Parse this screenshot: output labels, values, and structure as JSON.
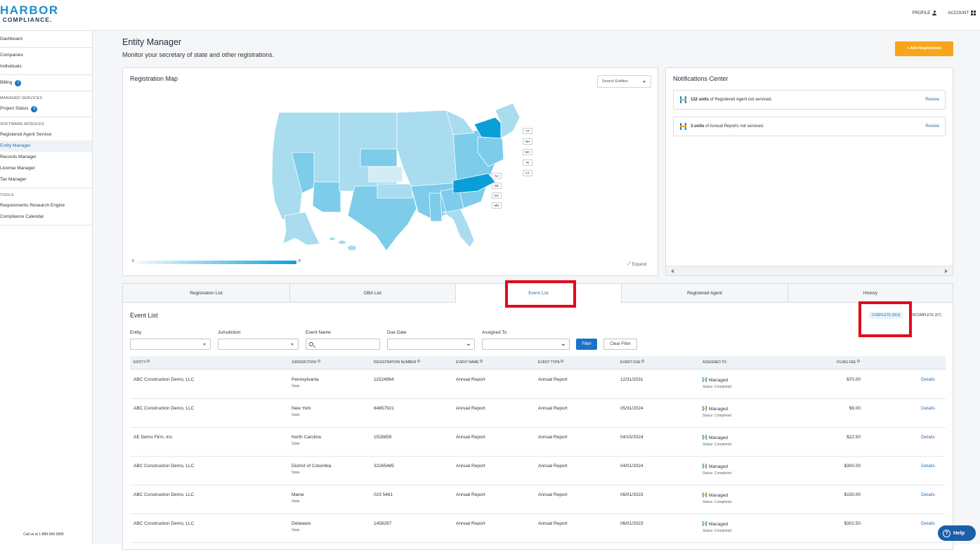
{
  "header": {
    "logo_top": "HARBOR",
    "logo_bottom": "COMPLIANCE.",
    "profile_label": "PROFILE",
    "account_label": "ACCOUNT"
  },
  "sidebar": {
    "dashboard": "Dashboard",
    "companies": "Companies",
    "individuals": "Individuals",
    "billing": "Billing",
    "billing_badge": "1",
    "managed_services_head": "MANAGED SERVICES",
    "project_status": "Project Status",
    "project_status_badge": "9",
    "software_modules_head": "SOFTWARE MODULES",
    "registered_agent_service": "Registered Agent Service",
    "entity_manager": "Entity Manager",
    "records_manager": "Records Manager",
    "license_manager": "License Manager",
    "tax_manager": "Tax Manager",
    "tools_head": "TOOLS",
    "requirements_research_engine": "Requirements Research Engine",
    "compliance_calendar": "Compliance Calendar",
    "footer": "Call us at 1-888-995-5895"
  },
  "page": {
    "title": "Entity Manager",
    "subtitle": "Monitor your secretary of state and other registrations.",
    "add_registration": "+ Add Registration"
  },
  "map": {
    "title": "Registration Map",
    "search_placeholder": "Search Entities",
    "state_tags_ne": [
      "VT",
      "NH",
      "MA",
      "RI",
      "CT"
    ],
    "state_tags_ma": [
      "NJ",
      "DE",
      "DC",
      "MD"
    ],
    "legend_min": "0",
    "legend_max": "8",
    "expand_label": "Expand",
    "colors": {
      "light": "#a8dcee",
      "mid": "#7cccea",
      "dark": "#0a9ed8",
      "pale": "#d3edf7"
    }
  },
  "notifications": {
    "title": "Notifications Center",
    "items": [
      {
        "count": "122 units",
        "text": " of Registered Agent not serviced.",
        "action": "Review"
      },
      {
        "count": "3 units",
        "text": " of Annual Reports not serviced.",
        "action": "Review"
      }
    ]
  },
  "tabs": [
    "Registration List",
    "DBA List",
    "Event List",
    "Registered Agent",
    "History"
  ],
  "event_list": {
    "title": "Event List",
    "complete": "COMPLETE (553)",
    "incomplete": "INCOMPLETE (57)",
    "filters": {
      "entity": "Entity",
      "jurisdiction": "Jurisdiction",
      "event_name": "Event Name",
      "due_date": "Due Date",
      "assigned_to": "Assigned To",
      "filter_btn": "Filter",
      "clear_btn": "Clear Filter"
    },
    "columns": [
      "ENTITY",
      "JURISDICTION",
      "REGISTRATION NUMBER",
      "EVENT NAME",
      "EVENT TYPE",
      "EVENT DUE",
      "ASSIGNED TO",
      "FILING FEE"
    ],
    "rows": [
      {
        "entity": "ABC Construction Demo, LLC",
        "jurisdiction": "Pennsylvania",
        "jur_type": "State",
        "reg": "11524964",
        "event_name": "Annual Report",
        "event_type": "Annual Report",
        "due": "12/31/2031",
        "assigned": "Managed",
        "status": "Status: Completed",
        "fee": "$70.00",
        "action": "Details"
      },
      {
        "entity": "ABC Construction Demo, LLC",
        "jurisdiction": "New York",
        "jur_type": "State",
        "reg": "64857921",
        "event_name": "Annual Report",
        "event_type": "Annual Report",
        "due": "05/31/2024",
        "assigned": "Managed",
        "status": "Status: Completed",
        "fee": "$9.00",
        "action": "Details"
      },
      {
        "entity": "AE Demo Firm, Inc.",
        "jurisdiction": "North Carolina",
        "jur_type": "State",
        "reg": "1528659",
        "event_name": "Annual Report",
        "event_type": "Annual Report",
        "due": "04/15/2024",
        "assigned": "Managed",
        "status": "Status: Completed",
        "fee": "$22.50",
        "action": "Details"
      },
      {
        "entity": "ABC Construction Demo, LLC",
        "jurisdiction": "District of Columbia",
        "jur_type": "State",
        "reg": "32265485",
        "event_name": "Annual Report",
        "event_type": "Annual Report",
        "due": "04/01/2024",
        "assigned": "Managed",
        "status": "Status: Completed",
        "fee": "$300.00",
        "action": "Details"
      },
      {
        "entity": "ABC Construction Demo, LLC",
        "jurisdiction": "Maine",
        "jur_type": "State",
        "reg": "023 5461",
        "event_name": "Annual Report",
        "event_type": "Annual Report",
        "due": "06/01/2023",
        "assigned": "Managed",
        "status": "Status: Completed",
        "fee": "$150.00",
        "action": "Details"
      },
      {
        "entity": "ABC Construction Demo, LLC",
        "jurisdiction": "Delaware",
        "jur_type": "State",
        "reg": "1458267",
        "event_name": "Annual Report",
        "event_type": "Annual Report",
        "due": "06/01/2023",
        "assigned": "Managed",
        "status": "Status: Completed",
        "fee": "$302.50",
        "action": "Details"
      }
    ]
  },
  "help": {
    "label": "Help"
  }
}
